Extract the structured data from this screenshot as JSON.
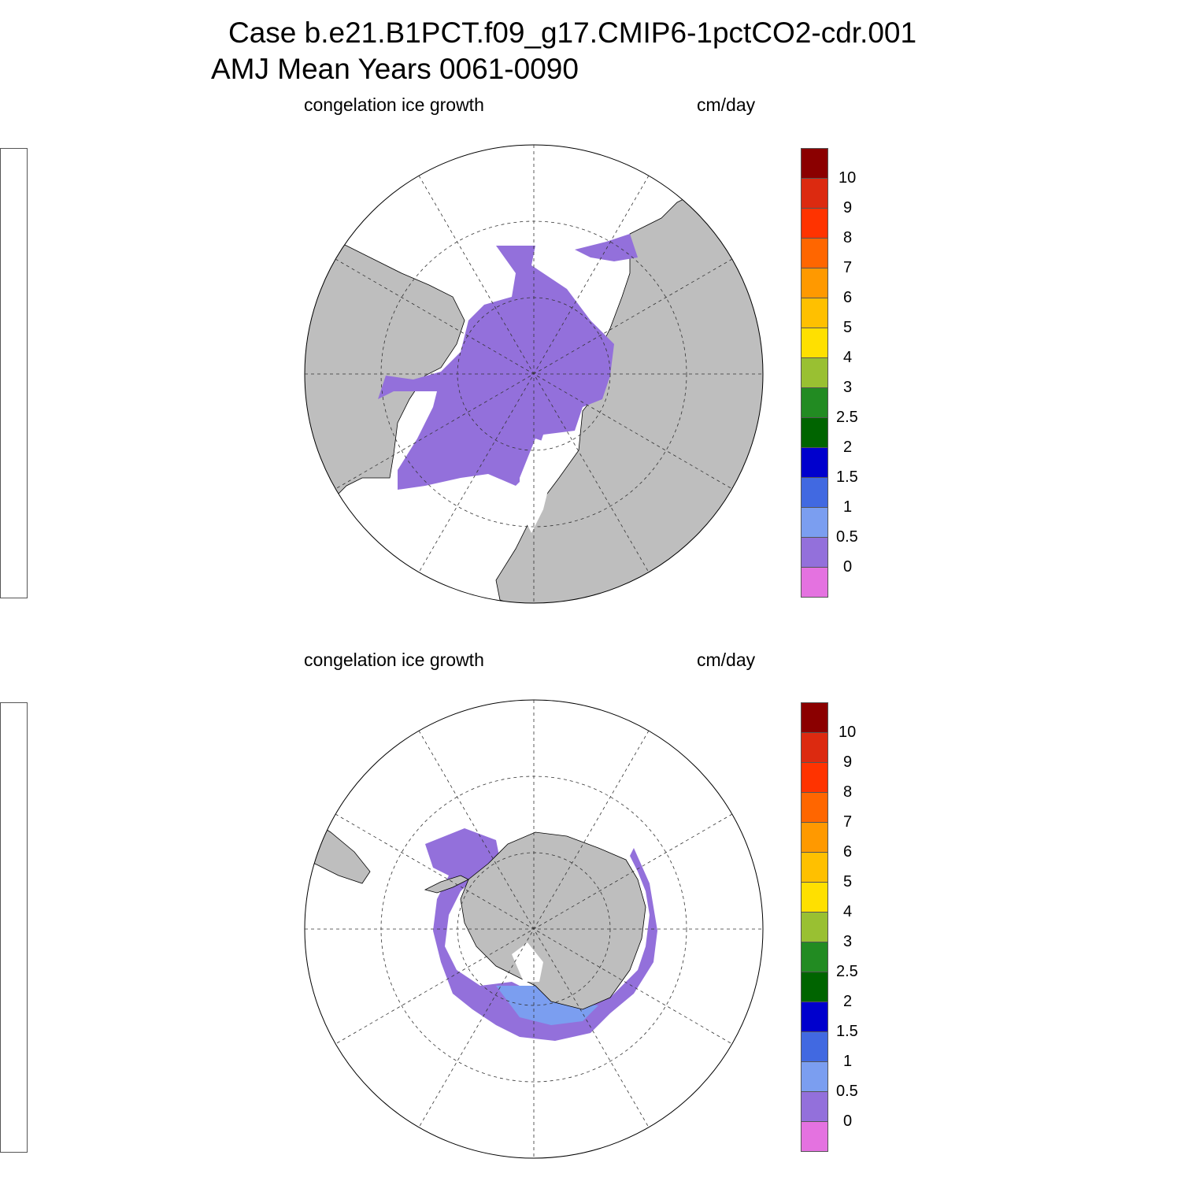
{
  "title": {
    "line1": "Case b.e21.B1PCT.f09_g17.CMIP6-1pctCO2-cdr.001",
    "line2": "AMJ Mean    Years 0061-0090"
  },
  "panels": [
    {
      "id": "north",
      "hemisphere": "Northern",
      "left_label": "congelation ice growth",
      "right_label": "cm/day"
    },
    {
      "id": "south",
      "hemisphere": "Southern",
      "left_label": "congelation ice growth",
      "right_label": "cm/day"
    }
  ],
  "colorbar": {
    "labels": [
      "10",
      "9",
      "8",
      "7",
      "6",
      "5",
      "4",
      "3",
      "2.5",
      "2",
      "1.5",
      "1",
      "0.5",
      "0"
    ],
    "colors_top_to_bottom": [
      "#8b0000",
      "#dc2a10",
      "#ff3300",
      "#ff6600",
      "#ff9900",
      "#ffc000",
      "#ffe000",
      "#99c032",
      "#228b22",
      "#006400",
      "#0000cd",
      "#4169e1",
      "#7b9ef0",
      "#9370db",
      "#e472e0"
    ]
  },
  "colors": {
    "land": "#bebebe",
    "ocean": "#ffffff",
    "ice_growth_low": "#9370db",
    "ice_growth_mid": "#7b9ef0"
  }
}
